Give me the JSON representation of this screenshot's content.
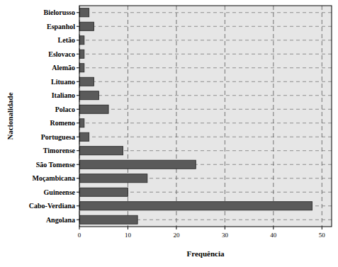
{
  "chart_data": {
    "type": "bar",
    "orientation": "horizontal",
    "x_label": "Frequência",
    "y_label": "Nacionalidade",
    "categories": [
      "Bielorusso",
      "Espanhol",
      "Letão",
      "Eslovaco",
      "Alemão",
      "Lituano",
      "Italiano",
      "Polaco",
      "Romeno",
      "Portuguesa",
      "Timorense",
      "São Tomense",
      "Moçambicana",
      "Guineense",
      "Cabo-Verdiana",
      "Angolana"
    ],
    "values": [
      2,
      3,
      1,
      1,
      1,
      3,
      4,
      6,
      1,
      2,
      9,
      24,
      14,
      10,
      48,
      12
    ],
    "color": "#5a5a5a",
    "xlim": [
      0,
      52
    ],
    "xticks": [
      0,
      10,
      20,
      30,
      40,
      50
    ],
    "grid": true
  }
}
